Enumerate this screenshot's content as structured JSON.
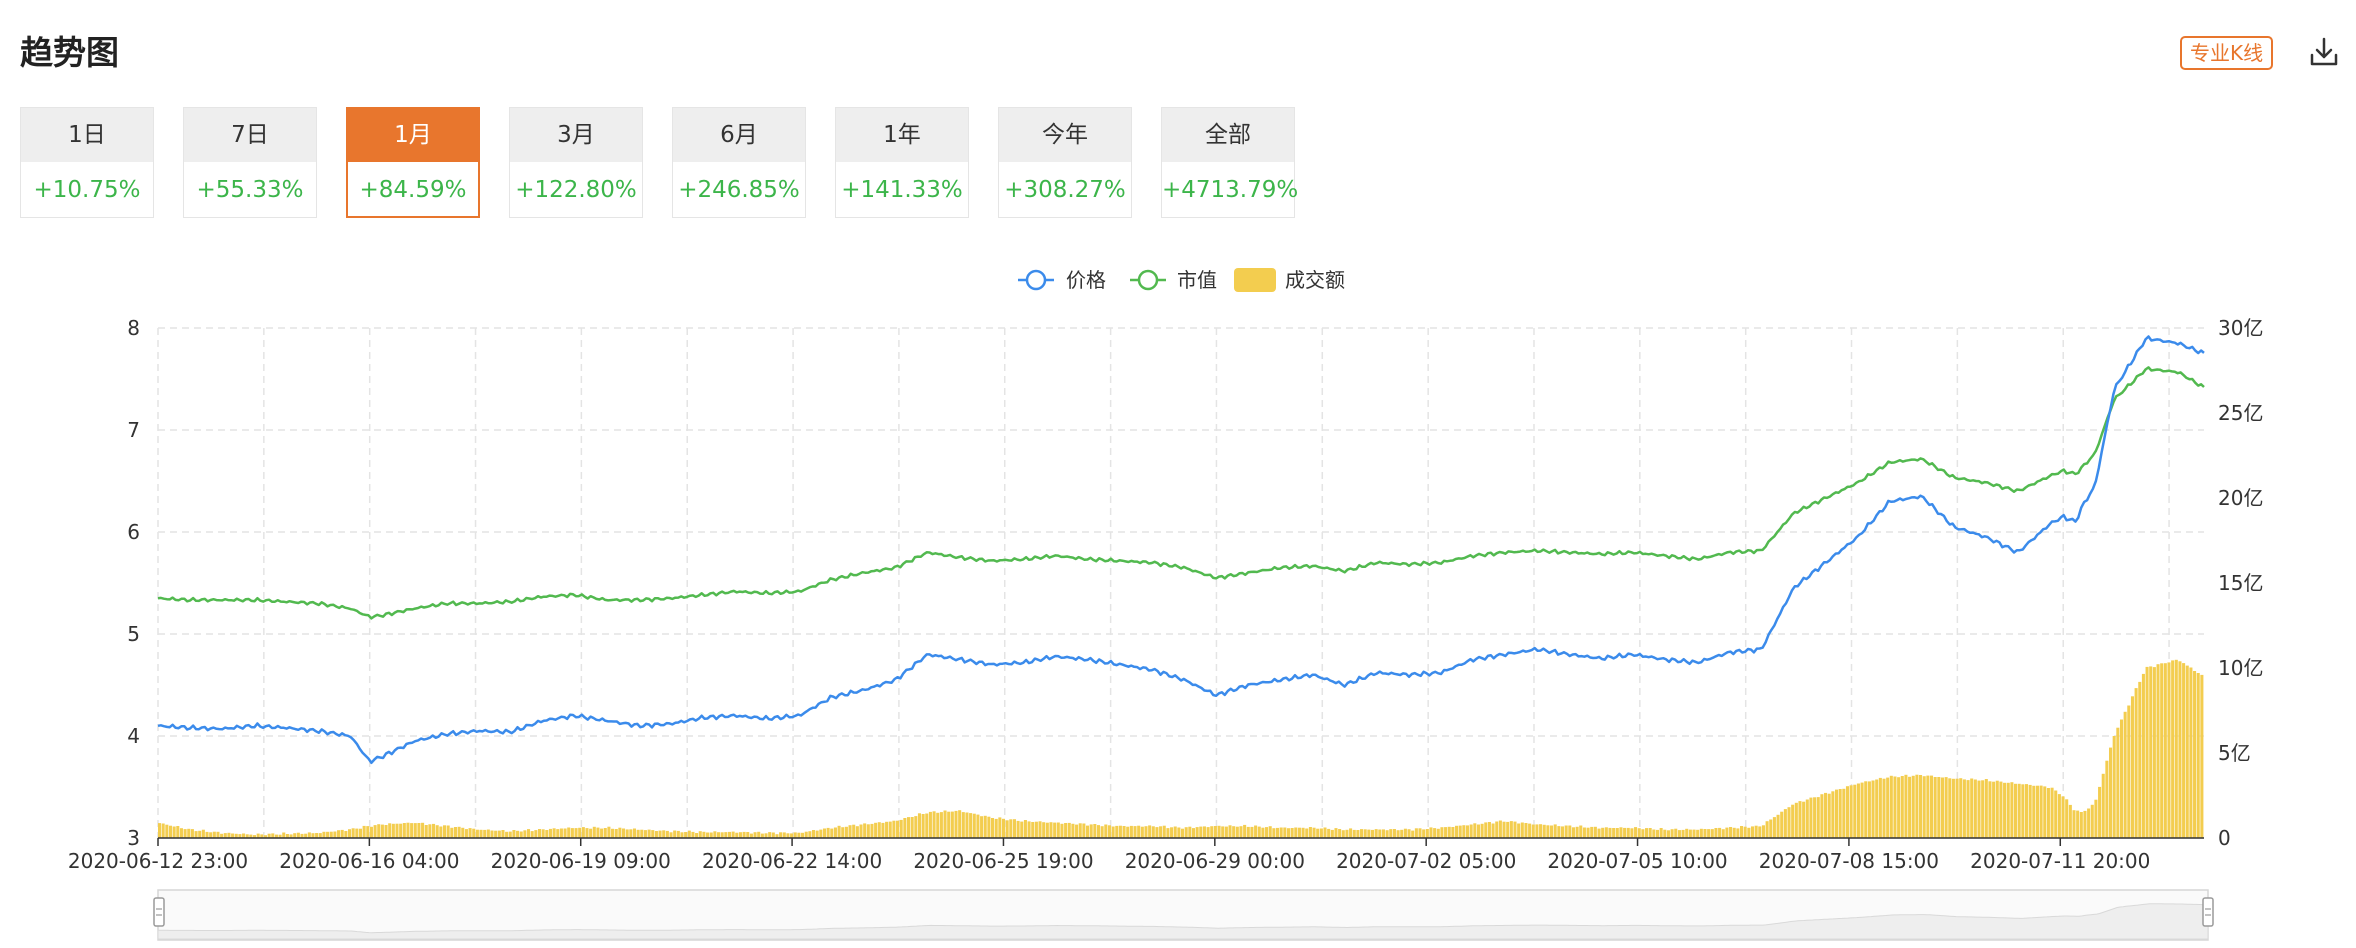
{
  "header": {
    "title": "趋势图",
    "pro_kline_label": "专业K线"
  },
  "tabs": [
    {
      "label": "1日",
      "change": "+10.75%",
      "active": false
    },
    {
      "label": "7日",
      "change": "+55.33%",
      "active": false
    },
    {
      "label": "1月",
      "change": "+84.59%",
      "active": true
    },
    {
      "label": "3月",
      "change": "+122.80%",
      "active": false
    },
    {
      "label": "6月",
      "change": "+246.85%",
      "active": false
    },
    {
      "label": "1年",
      "change": "+141.33%",
      "active": false
    },
    {
      "label": "今年",
      "change": "+308.27%",
      "active": false
    },
    {
      "label": "全部",
      "change": "+4713.79%",
      "active": false
    }
  ],
  "colors": {
    "accent": "#e8762d",
    "price": "#3b8beb",
    "marketcap": "#52b94f",
    "volume": "#f3cd4f",
    "positive": "#3cb54a"
  },
  "chart_data": {
    "type": "line",
    "legend": [
      "价格",
      "市值",
      "成交额"
    ],
    "x_tick_labels": [
      "2020-06-12 23:00",
      "2020-06-16 04:00",
      "2020-06-19 09:00",
      "2020-06-22 14:00",
      "2020-06-25 19:00",
      "2020-06-29 00:00",
      "2020-07-02 05:00",
      "2020-07-05 10:00",
      "2020-07-08 15:00",
      "2020-07-11 20:00"
    ],
    "y_left_ticks": [
      "3",
      "4",
      "5",
      "6",
      "7",
      "8"
    ],
    "y_left_range": [
      3,
      8
    ],
    "y_right_ticks": [
      "0",
      "5亿",
      "10亿",
      "15亿",
      "20亿",
      "25亿",
      "30亿"
    ],
    "y_right_range_yi": [
      0,
      30
    ],
    "x_days": [
      0,
      0.5,
      1,
      1.5,
      2,
      2.5,
      3,
      3.3,
      3.5,
      4,
      4.5,
      5,
      5.5,
      6,
      6.5,
      7,
      7.5,
      8,
      8.5,
      9,
      9.5,
      10,
      10.5,
      11,
      11.5,
      12,
      12.5,
      13,
      13.5,
      14,
      14.5,
      15,
      15.5,
      16,
      16.5,
      17,
      17.5,
      18,
      18.5,
      19,
      19.5,
      20,
      20.5,
      21,
      21.5,
      22,
      22.5,
      23,
      23.5,
      24,
      24.5,
      25,
      25.5,
      26,
      26.5,
      27,
      27.5,
      28,
      28.5,
      29,
      29.5,
      29.7,
      29.9,
      30,
      30.2,
      30.5,
      31,
      31.5,
      31.9
    ],
    "series": [
      {
        "name": "价格",
        "values": [
          4.1,
          4.08,
          4.07,
          4.1,
          4.08,
          4.05,
          4.0,
          3.75,
          3.8,
          3.95,
          4.02,
          4.05,
          4.04,
          4.15,
          4.2,
          4.15,
          4.1,
          4.12,
          4.18,
          4.2,
          4.17,
          4.2,
          4.38,
          4.45,
          4.55,
          4.8,
          4.75,
          4.7,
          4.72,
          4.78,
          4.75,
          4.7,
          4.65,
          4.55,
          4.4,
          4.5,
          4.55,
          4.6,
          4.5,
          4.62,
          4.6,
          4.62,
          4.75,
          4.8,
          4.85,
          4.8,
          4.76,
          4.8,
          4.75,
          4.72,
          4.82,
          4.85,
          5.45,
          5.7,
          5.95,
          6.3,
          6.35,
          6.05,
          5.95,
          5.8,
          6.08,
          6.15,
          6.1,
          6.25,
          6.45,
          7.4,
          7.9,
          7.85,
          7.75
        ]
      },
      {
        "name": "市值",
        "values_yi": [
          14.1,
          14.0,
          14.0,
          14.0,
          13.9,
          13.8,
          13.5,
          13.0,
          13.1,
          13.5,
          13.8,
          13.8,
          13.9,
          14.2,
          14.3,
          14.0,
          14.0,
          14.1,
          14.3,
          14.5,
          14.4,
          14.5,
          15.2,
          15.6,
          15.9,
          16.8,
          16.5,
          16.3,
          16.4,
          16.6,
          16.4,
          16.3,
          16.2,
          15.9,
          15.3,
          15.6,
          15.9,
          16.0,
          15.7,
          16.2,
          16.1,
          16.2,
          16.6,
          16.8,
          16.9,
          16.8,
          16.7,
          16.8,
          16.6,
          16.4,
          16.8,
          16.9,
          19.1,
          20.0,
          20.9,
          22.1,
          22.3,
          21.2,
          20.9,
          20.4,
          21.3,
          21.6,
          21.4,
          21.8,
          22.6,
          25.8,
          27.6,
          27.4,
          26.5
        ]
      },
      {
        "name": "成交额",
        "values_yi": [
          0.9,
          0.5,
          0.3,
          0.2,
          0.25,
          0.3,
          0.5,
          0.7,
          0.8,
          0.9,
          0.7,
          0.5,
          0.4,
          0.5,
          0.6,
          0.6,
          0.5,
          0.4,
          0.35,
          0.35,
          0.3,
          0.3,
          0.6,
          0.8,
          1.0,
          1.5,
          1.6,
          1.2,
          1.0,
          0.9,
          0.8,
          0.7,
          0.7,
          0.6,
          0.7,
          0.7,
          0.6,
          0.6,
          0.5,
          0.5,
          0.5,
          0.6,
          0.8,
          1.0,
          0.8,
          0.7,
          0.6,
          0.6,
          0.5,
          0.5,
          0.6,
          0.7,
          2.0,
          2.6,
          3.2,
          3.6,
          3.7,
          3.5,
          3.4,
          3.2,
          3.0,
          2.5,
          1.6,
          1.5,
          2.0,
          6.0,
          10.0,
          10.5,
          9.5
        ]
      }
    ]
  }
}
